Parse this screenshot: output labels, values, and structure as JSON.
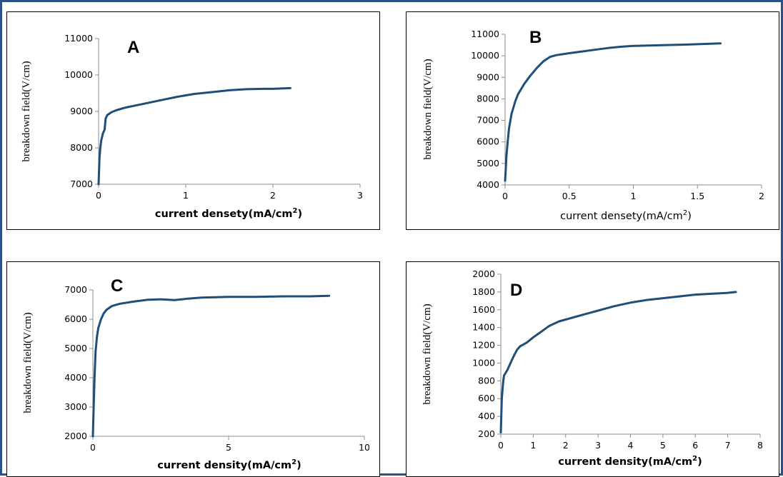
{
  "colors": {
    "frame": "#2a5188",
    "line": "#1f4e79",
    "axis": "#8c8c8c",
    "text": "#000000"
  },
  "chart_data": [
    {
      "type": "line",
      "panel_label": "A",
      "xlabel": "current densety(mA/cm²)",
      "ylabel": "breakdown field(V/cm)",
      "xlim": [
        0,
        3
      ],
      "ylim": [
        7000,
        11000
      ],
      "x_ticks": [
        0,
        1,
        2,
        3
      ],
      "y_ticks": [
        7000,
        8000,
        9000,
        10000,
        11000
      ],
      "grid": false,
      "series": [
        {
          "x": [
            0.0,
            0.01,
            0.02,
            0.03,
            0.05,
            0.07,
            0.08,
            0.1,
            0.15,
            0.2,
            0.3,
            0.5,
            0.7,
            0.9,
            1.1,
            1.3,
            1.5,
            1.7,
            1.9,
            2.0,
            2.2
          ],
          "y": [
            7000,
            7700,
            8000,
            8200,
            8400,
            8500,
            8800,
            8900,
            8980,
            9030,
            9100,
            9200,
            9300,
            9400,
            9480,
            9530,
            9580,
            9610,
            9620,
            9620,
            9640
          ]
        }
      ]
    },
    {
      "type": "line",
      "panel_label": "B",
      "xlabel": "current  densety(mA/cm²)",
      "ylabel": "breakdown field(V/cm)",
      "xlim": [
        0,
        2
      ],
      "ylim": [
        4000,
        11000
      ],
      "x_ticks": [
        0,
        0.5,
        1,
        1.5,
        2
      ],
      "y_ticks": [
        4000,
        5000,
        6000,
        7000,
        8000,
        9000,
        10000,
        11000
      ],
      "grid": false,
      "series": [
        {
          "x": [
            0.0,
            0.005,
            0.01,
            0.02,
            0.03,
            0.05,
            0.08,
            0.1,
            0.15,
            0.2,
            0.25,
            0.3,
            0.35,
            0.4,
            0.5,
            0.6,
            0.7,
            0.8,
            0.9,
            1.0,
            1.2,
            1.4,
            1.6,
            1.68
          ],
          "y": [
            4200,
            4700,
            5300,
            6000,
            6600,
            7300,
            7900,
            8200,
            8700,
            9100,
            9450,
            9750,
            9950,
            10030,
            10120,
            10200,
            10280,
            10360,
            10420,
            10460,
            10490,
            10520,
            10560,
            10580
          ]
        }
      ]
    },
    {
      "type": "line",
      "panel_label": "C",
      "xlabel": "current density(mA/cm²)",
      "ylabel": "breakdown field(V/cm)",
      "xlim": [
        0,
        10
      ],
      "ylim": [
        2000,
        7000
      ],
      "x_ticks": [
        0,
        5,
        10
      ],
      "y_ticks": [
        2000,
        3000,
        4000,
        5000,
        6000,
        7000
      ],
      "grid": false,
      "series": [
        {
          "x": [
            0.0,
            0.03,
            0.06,
            0.1,
            0.15,
            0.2,
            0.3,
            0.4,
            0.5,
            0.7,
            1.0,
            1.5,
            2.0,
            2.5,
            3.0,
            3.5,
            4.0,
            5.0,
            6.0,
            7.0,
            8.0,
            8.7
          ],
          "y": [
            2000,
            3000,
            4000,
            4900,
            5400,
            5700,
            6000,
            6200,
            6320,
            6450,
            6530,
            6600,
            6660,
            6680,
            6650,
            6700,
            6740,
            6760,
            6760,
            6780,
            6780,
            6800
          ]
        }
      ]
    },
    {
      "type": "line",
      "panel_label": "D",
      "xlabel": "current density(mA/cm²)",
      "ylabel": "breakdown field(V/cm)",
      "xlim": [
        0,
        8
      ],
      "ylim": [
        200,
        2000
      ],
      "x_ticks": [
        0,
        1,
        2,
        3,
        4,
        5,
        6,
        7,
        8
      ],
      "y_ticks": [
        200,
        400,
        600,
        800,
        1000,
        1200,
        1400,
        1600,
        1800,
        2000
      ],
      "grid": false,
      "series": [
        {
          "x": [
            0.0,
            0.03,
            0.07,
            0.1,
            0.2,
            0.3,
            0.4,
            0.5,
            0.6,
            0.7,
            0.8,
            1.0,
            1.2,
            1.5,
            1.8,
            2.0,
            2.5,
            3.0,
            3.5,
            4.0,
            4.5,
            5.0,
            5.5,
            6.0,
            6.5,
            7.0,
            7.25
          ],
          "y": [
            220,
            600,
            780,
            860,
            920,
            1000,
            1080,
            1150,
            1190,
            1210,
            1230,
            1290,
            1340,
            1420,
            1470,
            1490,
            1540,
            1590,
            1640,
            1680,
            1710,
            1730,
            1750,
            1770,
            1780,
            1790,
            1800
          ]
        }
      ]
    }
  ]
}
